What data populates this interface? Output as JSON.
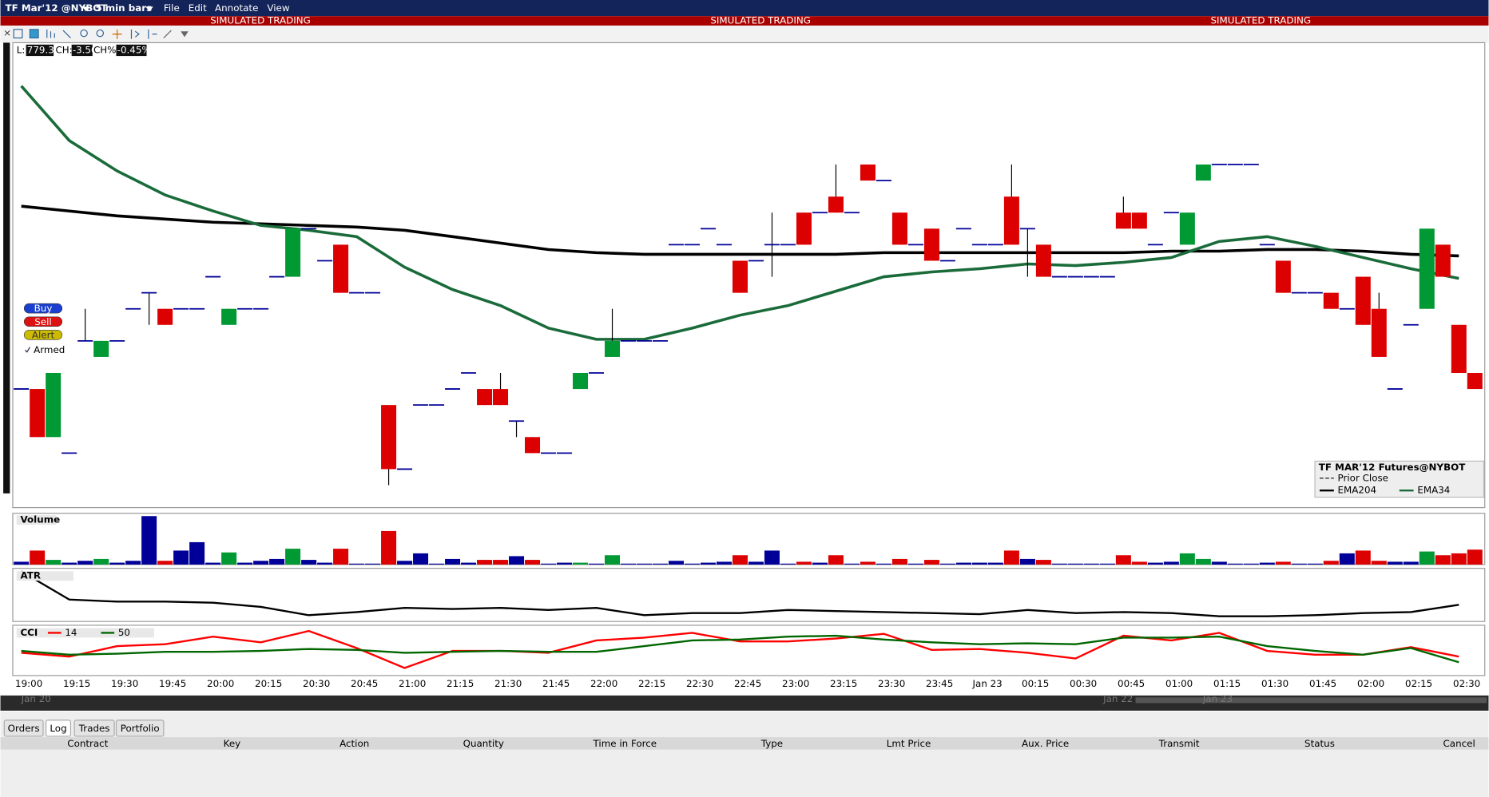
{
  "window": {
    "symbol": "TF Mar'12 @NYBOT",
    "bar_size": "5 min bars",
    "menu": [
      "File",
      "Edit",
      "Annotate",
      "View"
    ],
    "banner": [
      "SIMULATED TRADING",
      "SIMULATED TRADING",
      "SIMULATED TRADING"
    ],
    "quote": {
      "last_label": "L:",
      "last": "779.30",
      "change_label": "CH:",
      "change": "-3.50",
      "change_pct_label": "CH%:",
      "change_pct": "-0.45%"
    },
    "order_buttons": [
      "Buy",
      "Sell",
      "Alert"
    ],
    "armed": "Armed",
    "scroll_dates": [
      "Jan 20",
      "Jan 22",
      "Jan 23"
    ],
    "tabs": [
      "Orders",
      "Log",
      "Trades",
      "Portfolio"
    ],
    "columns": [
      "Contract",
      "Key",
      "Action",
      "Quantity",
      "Time in Force",
      "Type",
      "Lmt Price",
      "Aux. Price",
      "Transmit",
      "Status",
      "Cancel"
    ]
  },
  "chart_data": [
    {
      "type": "candlestick",
      "legend_title": "TF MAR'12 Futures@NYBOT",
      "prior_close_label": "Prior Close",
      "ylim": [
        778.56,
        781.46
      ],
      "up_color": "#009933",
      "down_color": "#dd0000",
      "flat_color": "#000099",
      "candles": [
        [
          779.3,
          779.3,
          779.3,
          779.3
        ],
        [
          779.3,
          779.3,
          779.0,
          779.0
        ],
        [
          779.0,
          779.4,
          779.0,
          779.4
        ],
        [
          778.9,
          778.9,
          778.9,
          778.9
        ],
        [
          779.6,
          779.8,
          779.6,
          779.6
        ],
        [
          779.5,
          779.6,
          779.5,
          779.6
        ],
        [
          779.6,
          779.6,
          779.6,
          779.6
        ],
        [
          779.8,
          779.8,
          779.8,
          779.8
        ],
        [
          779.9,
          779.9,
          779.7,
          779.9
        ],
        [
          779.8,
          779.8,
          779.7,
          779.7
        ],
        [
          779.8,
          779.8,
          779.8,
          779.8
        ],
        [
          779.8,
          779.8,
          779.8,
          779.8
        ],
        [
          780.0,
          780.0,
          780.0,
          780.0
        ],
        [
          779.7,
          779.8,
          779.7,
          779.8
        ],
        [
          779.8,
          779.8,
          779.8,
          779.8
        ],
        [
          779.8,
          779.8,
          779.8,
          779.8
        ],
        [
          780.0,
          780.0,
          780.0,
          780.0
        ],
        [
          780.0,
          780.3,
          780.0,
          780.3
        ],
        [
          780.3,
          780.3,
          780.3,
          780.3
        ],
        [
          780.1,
          780.1,
          780.1,
          780.1
        ],
        [
          780.2,
          780.2,
          779.9,
          779.9
        ],
        [
          779.9,
          779.9,
          779.9,
          779.9
        ],
        [
          779.9,
          779.9,
          779.9,
          779.9
        ],
        [
          779.2,
          779.2,
          778.7,
          778.8
        ],
        [
          778.8,
          778.8,
          778.8,
          778.8
        ],
        [
          779.2,
          779.2,
          779.2,
          779.2
        ],
        [
          779.2,
          779.2,
          779.2,
          779.2
        ],
        [
          779.3,
          779.3,
          779.3,
          779.3
        ],
        [
          779.4,
          779.4,
          779.4,
          779.4
        ],
        [
          779.3,
          779.3,
          779.2,
          779.2
        ],
        [
          779.3,
          779.4,
          779.2,
          779.2
        ],
        [
          779.1,
          779.1,
          779.0,
          779.1
        ],
        [
          779.0,
          779.0,
          778.9,
          778.9
        ],
        [
          778.9,
          778.9,
          778.9,
          778.9
        ],
        [
          778.9,
          778.9,
          778.9,
          778.9
        ],
        [
          779.3,
          779.4,
          779.3,
          779.4
        ],
        [
          779.4,
          779.4,
          779.4,
          779.4
        ],
        [
          779.5,
          779.8,
          779.5,
          779.6
        ],
        [
          779.6,
          779.6,
          779.6,
          779.6
        ],
        [
          779.6,
          779.6,
          779.6,
          779.6
        ],
        [
          779.6,
          779.6,
          779.6,
          779.6
        ],
        [
          780.2,
          780.2,
          780.2,
          780.2
        ],
        [
          780.2,
          780.2,
          780.2,
          780.2
        ],
        [
          780.3,
          780.3,
          780.3,
          780.3
        ],
        [
          780.2,
          780.2,
          780.2,
          780.2
        ],
        [
          780.1,
          780.1,
          779.9,
          779.9
        ],
        [
          780.1,
          780.1,
          780.1,
          780.1
        ],
        [
          780.2,
          780.4,
          780.0,
          780.2
        ],
        [
          780.2,
          780.2,
          780.2,
          780.2
        ],
        [
          780.4,
          780.4,
          780.2,
          780.2
        ],
        [
          780.4,
          780.4,
          780.4,
          780.4
        ],
        [
          780.5,
          780.7,
          780.4,
          780.4
        ],
        [
          780.4,
          780.4,
          780.4,
          780.4
        ],
        [
          780.7,
          780.7,
          780.6,
          780.6
        ],
        [
          780.6,
          780.6,
          780.6,
          780.6
        ],
        [
          780.4,
          780.4,
          780.2,
          780.2
        ],
        [
          780.2,
          780.2,
          780.2,
          780.2
        ],
        [
          780.3,
          780.3,
          780.1,
          780.1
        ],
        [
          780.1,
          780.1,
          780.1,
          780.1
        ],
        [
          780.3,
          780.3,
          780.3,
          780.3
        ],
        [
          780.2,
          780.2,
          780.2,
          780.2
        ],
        [
          780.2,
          780.2,
          780.2,
          780.2
        ],
        [
          780.5,
          780.7,
          780.2,
          780.2
        ],
        [
          780.3,
          780.3,
          780.0,
          780.3
        ],
        [
          780.2,
          780.2,
          780.0,
          780.0
        ],
        [
          780.0,
          780.0,
          780.0,
          780.0
        ],
        [
          780.0,
          780.0,
          780.0,
          780.0
        ],
        [
          780.0,
          780.0,
          780.0,
          780.0
        ],
        [
          780.0,
          780.0,
          780.0,
          780.0
        ],
        [
          780.4,
          780.5,
          780.3,
          780.3
        ],
        [
          780.4,
          780.4,
          780.3,
          780.3
        ],
        [
          780.2,
          780.2,
          780.2,
          780.2
        ],
        [
          780.4,
          780.4,
          780.4,
          780.4
        ],
        [
          780.2,
          780.4,
          780.2,
          780.4
        ],
        [
          780.6,
          780.7,
          780.6,
          780.7
        ],
        [
          780.7,
          780.7,
          780.7,
          780.7
        ],
        [
          780.7,
          780.7,
          780.7,
          780.7
        ],
        [
          780.7,
          780.7,
          780.7,
          780.7
        ],
        [
          780.2,
          780.2,
          780.2,
          780.2
        ],
        [
          780.1,
          780.1,
          779.9,
          779.9
        ],
        [
          779.9,
          779.9,
          779.9,
          779.9
        ],
        [
          779.9,
          779.9,
          779.9,
          779.9
        ],
        [
          779.9,
          779.9,
          779.8,
          779.8
        ],
        [
          779.8,
          779.8,
          779.8,
          779.8
        ],
        [
          780.0,
          780.0,
          779.7,
          779.7
        ],
        [
          779.8,
          779.9,
          779.5,
          779.5
        ],
        [
          779.3,
          779.3,
          779.3,
          779.3
        ],
        [
          779.7,
          779.7,
          779.7,
          779.7
        ],
        [
          779.8,
          780.3,
          779.8,
          780.3
        ],
        [
          780.2,
          780.2,
          780.0,
          780.0
        ],
        [
          779.7,
          779.7,
          779.4,
          779.4
        ],
        [
          779.4,
          779.4,
          779.3,
          779.3
        ]
      ],
      "series": [
        {
          "name": "EMA204",
          "color": "#000000",
          "values": [
            780.44,
            780.41,
            780.38,
            780.36,
            780.34,
            780.33,
            780.32,
            780.31,
            780.29,
            780.25,
            780.21,
            780.17,
            780.15,
            780.14,
            780.14,
            780.14,
            780.14,
            780.14,
            780.15,
            780.15,
            780.15,
            780.15,
            780.15,
            780.15,
            780.16,
            780.16,
            780.17,
            780.17,
            780.16,
            780.14,
            780.13
          ]
        },
        {
          "name": "EMA34",
          "color": "#1a6b3a",
          "values": [
            781.19,
            780.85,
            780.66,
            780.51,
            780.41,
            780.32,
            780.29,
            780.25,
            780.06,
            779.92,
            779.82,
            779.68,
            779.61,
            779.61,
            779.68,
            779.76,
            779.82,
            779.91,
            780.0,
            780.03,
            780.05,
            780.08,
            780.07,
            780.09,
            780.12,
            780.22,
            780.25,
            780.19,
            780.12,
            780.05,
            779.99
          ]
        }
      ],
      "xtick_labels": [
        "19:00",
        "19:15",
        "19:30",
        "19:45",
        "20:00",
        "20:15",
        "20:30",
        "20:45",
        "21:00",
        "21:15",
        "21:30",
        "21:45",
        "22:00",
        "22:15",
        "22:30",
        "22:45",
        "23:00",
        "23:15",
        "23:30",
        "23:45",
        "Jan 23",
        "00:15",
        "00:30",
        "00:45",
        "01:00",
        "01:15",
        "01:30",
        "01:45",
        "02:00",
        "02:15",
        "02:30"
      ]
    },
    {
      "type": "bar",
      "title": "Volume",
      "ylim": [
        0,
        55
      ],
      "values": [
        3,
        15,
        5,
        2,
        4,
        6,
        2,
        4,
        52,
        4,
        15,
        24,
        2,
        13,
        2,
        4,
        6,
        17,
        5,
        2,
        17,
        1,
        1,
        36,
        4,
        12,
        1,
        6,
        2,
        5,
        5,
        9,
        5,
        1,
        2,
        2,
        1,
        10,
        1,
        1,
        1,
        4,
        1,
        2,
        3,
        10,
        3,
        15,
        1,
        3,
        2,
        10,
        1,
        3,
        1,
        6,
        1,
        5,
        1,
        2,
        2,
        2,
        15,
        6,
        5,
        1,
        1,
        1,
        1,
        10,
        3,
        2,
        3,
        12,
        6,
        3,
        1,
        1,
        2,
        3,
        1,
        1,
        4,
        12,
        15,
        4,
        3,
        3,
        14,
        10,
        12,
        16
      ]
    },
    {
      "type": "line",
      "title": "ATR",
      "ylim": [
        0,
        0.5
      ],
      "series": [
        {
          "color": "#000000",
          "values": [
            0.48,
            0.21,
            0.19,
            0.19,
            0.18,
            0.14,
            0.06,
            0.09,
            0.13,
            0.12,
            0.13,
            0.11,
            0.13,
            0.06,
            0.08,
            0.08,
            0.11,
            0.1,
            0.09,
            0.08,
            0.07,
            0.11,
            0.08,
            0.09,
            0.08,
            0.05,
            0.05,
            0.06,
            0.08,
            0.09,
            0.16
          ]
        }
      ]
    },
    {
      "type": "line",
      "title": "CCI",
      "ylim": [
        -300,
        300
      ],
      "series": [
        {
          "name": "14",
          "color": "#ff0000",
          "values": [
            -23,
            -69,
            58,
            81,
            173,
            104,
            242,
            35,
            -208,
            0,
            0,
            -23,
            127,
            162,
            219,
            115,
            115,
            150,
            208,
            12,
            23,
            -23,
            -92,
            185,
            127,
            219,
            0,
            -46,
            -46,
            46,
            -69
          ]
        },
        {
          "name": "50",
          "color": "#006600",
          "values": [
            0,
            -46,
            -35,
            -12,
            -12,
            0,
            23,
            12,
            -23,
            -12,
            0,
            -12,
            -12,
            58,
            127,
            138,
            173,
            185,
            138,
            104,
            81,
            92,
            81,
            162,
            162,
            173,
            58,
            0,
            -46,
            35,
            -138
          ]
        }
      ]
    }
  ]
}
